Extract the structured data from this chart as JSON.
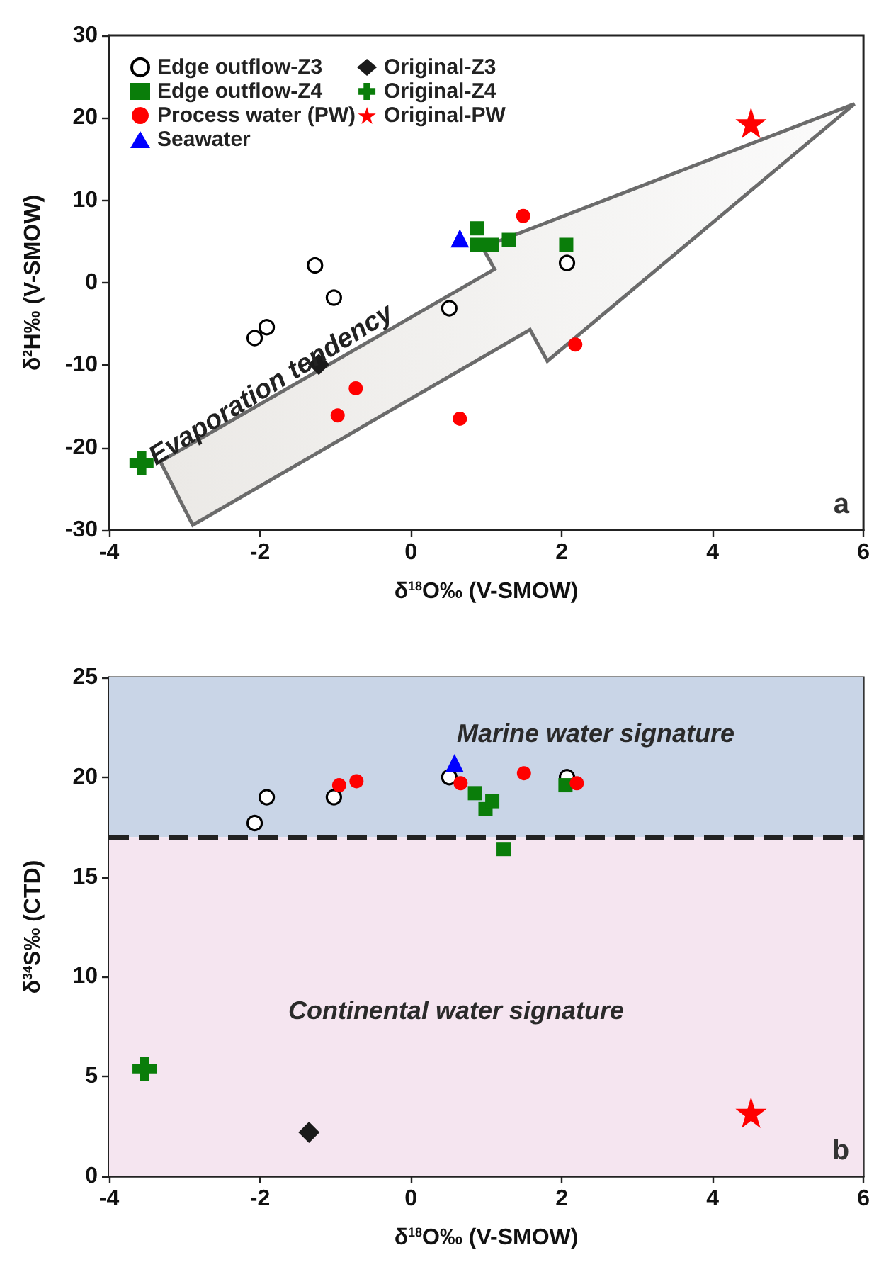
{
  "chart_data": [
    {
      "type": "scatter",
      "xlabel": "δ$^{18}$O‰ (V-SMOW)",
      "ylabel": "δ$^{2}$H‰ (V-SMOW)",
      "xlim": [
        -4,
        6
      ],
      "ylim": [
        -30,
        30
      ],
      "xticks": [
        -4,
        -2,
        0,
        2,
        4,
        6
      ],
      "yticks": [
        -30,
        -20,
        -10,
        0,
        10,
        20,
        30
      ],
      "legend": "top left",
      "annotations": [
        "Evaporation tendency",
        "a"
      ],
      "series": [
        {
          "name": "Edge outflow-Z3",
          "color": "#000000",
          "marker": "open-circle",
          "x": [
            -1.27,
            -1.02,
            -2.07,
            -1.91,
            0.51,
            2.07
          ],
          "values": [
            2.1,
            -1.8,
            -6.7,
            -5.4,
            -3.1,
            2.4
          ]
        },
        {
          "name": "Edge outflow-Z4",
          "color": "#0a7d0a",
          "marker": "square",
          "x": [
            0.88,
            0.88,
            1.07,
            1.3,
            2.06
          ],
          "values": [
            6.6,
            4.6,
            4.6,
            5.2,
            4.6
          ]
        },
        {
          "name": "Process water (PW)",
          "color": "#ff0000",
          "marker": "circle",
          "x": [
            1.49,
            2.18,
            -0.73,
            -0.97,
            0.65
          ],
          "values": [
            8.1,
            -7.5,
            -12.8,
            -16.1,
            -16.5
          ]
        },
        {
          "name": "Seawater",
          "color": "#0000ff",
          "marker": "triangle",
          "x": [
            0.65
          ],
          "values": [
            5.4
          ]
        },
        {
          "name": "Original-Z3",
          "color": "#1a1a1a",
          "marker": "diamond",
          "x": [
            -1.22
          ],
          "values": [
            -9.9
          ]
        },
        {
          "name": "Original-Z4",
          "color": "#0a7d0a",
          "marker": "cross",
          "x": [
            -3.57
          ],
          "values": [
            -21.9
          ]
        },
        {
          "name": "Original-PW",
          "color": "#ff0000",
          "marker": "star",
          "x": [
            4.51
          ],
          "values": [
            19.4
          ]
        }
      ]
    },
    {
      "type": "scatter",
      "xlabel": "δ$^{18}$O‰ (V-SMOW)",
      "ylabel": "δ$^{34}$S‰ (CTD)",
      "xlim": [
        -4,
        6
      ],
      "ylim": [
        0,
        25
      ],
      "xticks": [
        -4,
        -2,
        0,
        2,
        4,
        6
      ],
      "yticks": [
        0,
        5,
        10,
        15,
        20,
        25
      ],
      "annotations": [
        "b"
      ],
      "bands": [
        {
          "axis": "y",
          "from": 17,
          "to": 25,
          "label": "Marine water signature",
          "color": "#c9d5e7"
        },
        {
          "axis": "y",
          "from": 0,
          "to": 17,
          "label": "Continental water signature",
          "color": "#f5e5f0"
        }
      ],
      "ref_lines": [
        {
          "axis": "y",
          "value": 17,
          "color": "#222222",
          "line_style": "dashed"
        }
      ],
      "series": [
        {
          "color": "#000000",
          "marker": "open-circle",
          "x": [
            -2.07,
            -1.91,
            -1.02,
            0.51,
            2.07
          ],
          "values": [
            17.7,
            19.0,
            19.0,
            20.0,
            20.0
          ]
        },
        {
          "color": "#0a7d0a",
          "marker": "square",
          "x": [
            0.85,
            0.99,
            1.08,
            1.23,
            2.05
          ],
          "values": [
            19.2,
            18.4,
            18.8,
            16.4,
            19.6
          ]
        },
        {
          "color": "#ff0000",
          "marker": "circle",
          "x": [
            -0.95,
            -0.72,
            0.66,
            1.5,
            2.2
          ],
          "values": [
            19.6,
            19.8,
            19.7,
            20.2,
            19.7
          ]
        },
        {
          "color": "#0000ff",
          "marker": "triangle",
          "x": [
            0.58
          ],
          "values": [
            20.7
          ]
        },
        {
          "color": "#1a1a1a",
          "marker": "diamond",
          "x": [
            -1.35
          ],
          "values": [
            2.2
          ]
        },
        {
          "color": "#0a7d0a",
          "marker": "cross",
          "x": [
            -3.53
          ],
          "values": [
            5.4
          ]
        },
        {
          "color": "#ff0000",
          "marker": "star",
          "x": [
            4.51
          ],
          "values": [
            3.2
          ]
        }
      ]
    }
  ]
}
